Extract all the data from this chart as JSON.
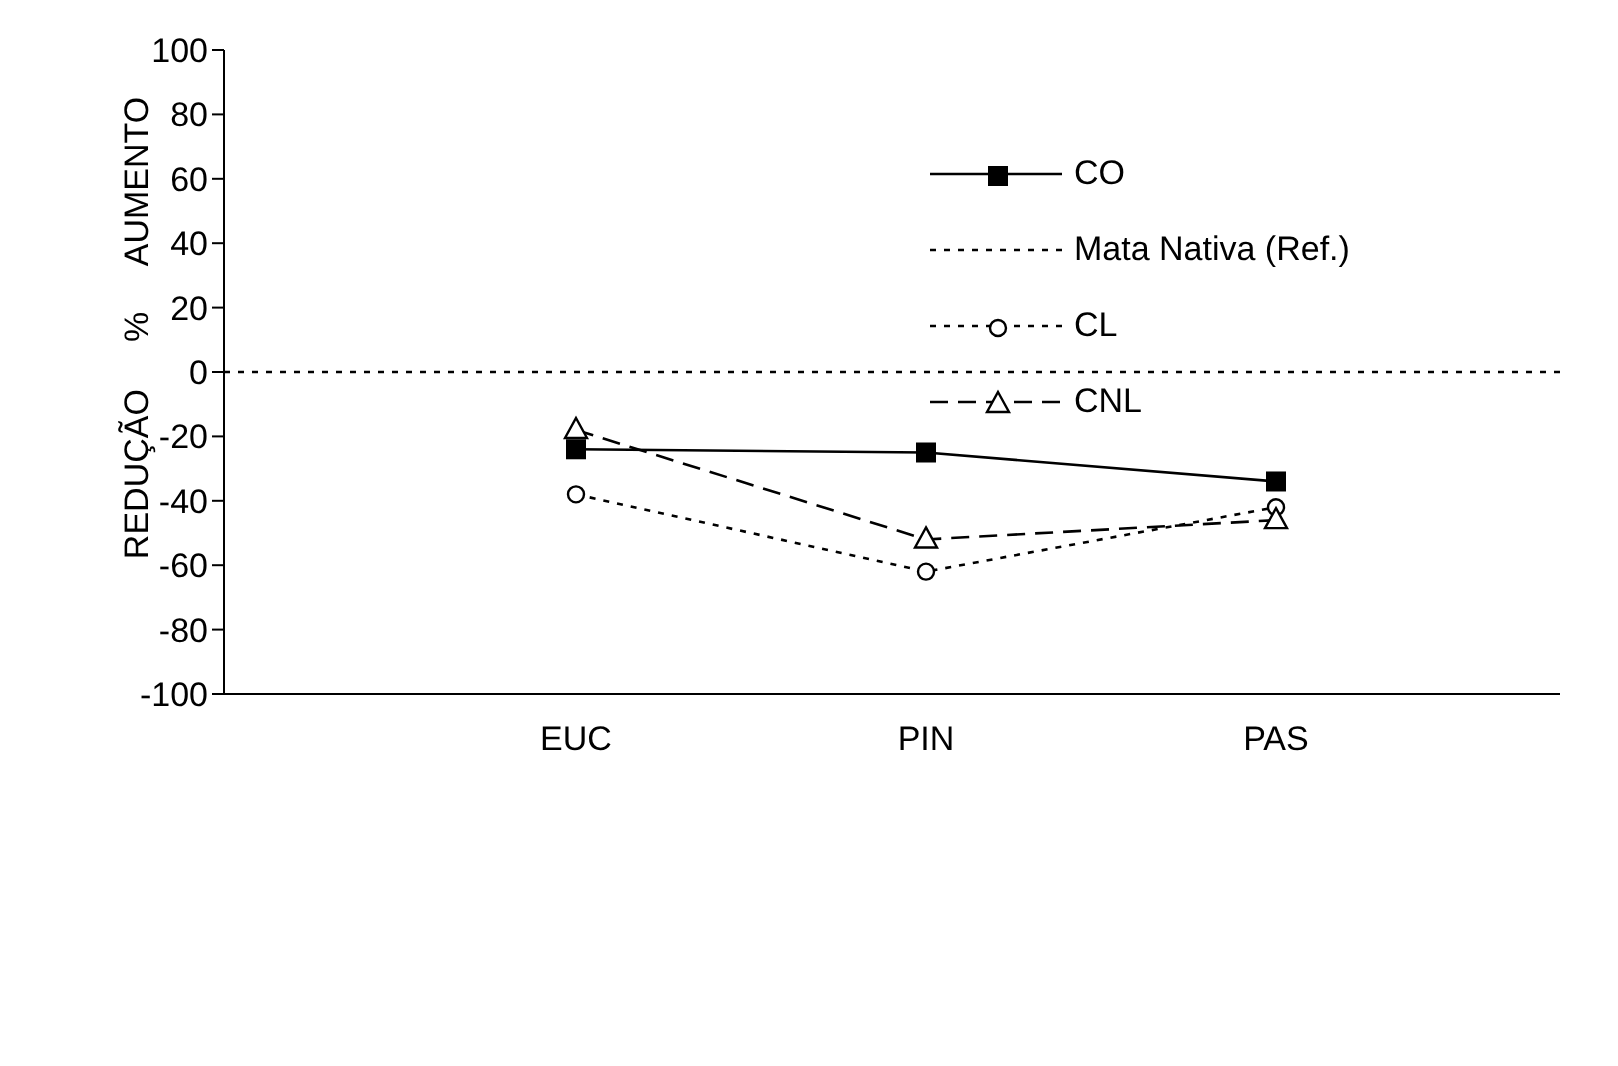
{
  "chart_data": {
    "type": "line",
    "ylabel": "REDUÇÃO     %     AUMENTO",
    "categories": [
      "EUC",
      "PIN",
      "PAS"
    ],
    "series": [
      {
        "name": "CO",
        "color": "#000000",
        "values": [
          -24,
          -25,
          -34
        ],
        "marker": "square",
        "line_style": "solid"
      },
      {
        "name": "CL",
        "color": "#000000",
        "values": [
          -38,
          -62,
          -42
        ],
        "marker": "circle",
        "line_style": "dotted"
      },
      {
        "name": "CNL",
        "color": "#000000",
        "values": [
          -18,
          -52,
          -46
        ],
        "marker": "triangle",
        "line_style": "dashed"
      }
    ],
    "ref_lines": [
      {
        "axis": "y",
        "value": 0,
        "label": "Mata Nativa (Ref.)",
        "color": "#000000",
        "line_style": "dotted"
      }
    ],
    "ylim": [
      -100,
      100
    ],
    "yticks": [
      -100,
      -80,
      -60,
      -40,
      -20,
      0,
      20,
      40,
      60,
      80,
      100
    ],
    "legend": "top right",
    "grid": false
  }
}
